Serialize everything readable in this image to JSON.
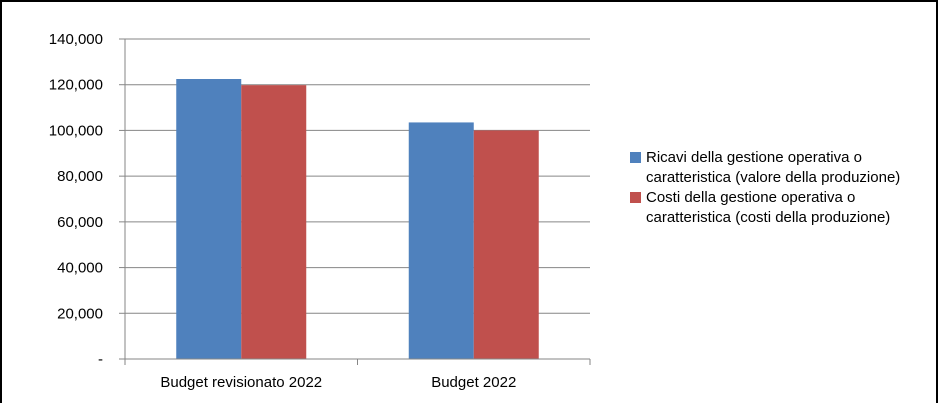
{
  "chart_data": {
    "type": "bar",
    "categories": [
      "Budget revisionato 2022",
      "Budget 2022"
    ],
    "series": [
      {
        "name": "Ricavi della gestione operativa o caratteristica (valore della produzione)",
        "values": [
          122500,
          103500
        ],
        "color": "#4F81BD"
      },
      {
        "name": "Costi della gestione operativa o caratteristica (costi della produzione)",
        "values": [
          119800,
          100000
        ],
        "color": "#C0504D"
      }
    ],
    "yticks": [
      "-",
      "20,000",
      "40,000",
      "60,000",
      "80,000",
      "100,000",
      "120,000",
      "140,000"
    ],
    "ylim": [
      0,
      140000
    ],
    "grid": true,
    "legend_position": "right",
    "title": "",
    "xlabel": "",
    "ylabel": ""
  }
}
